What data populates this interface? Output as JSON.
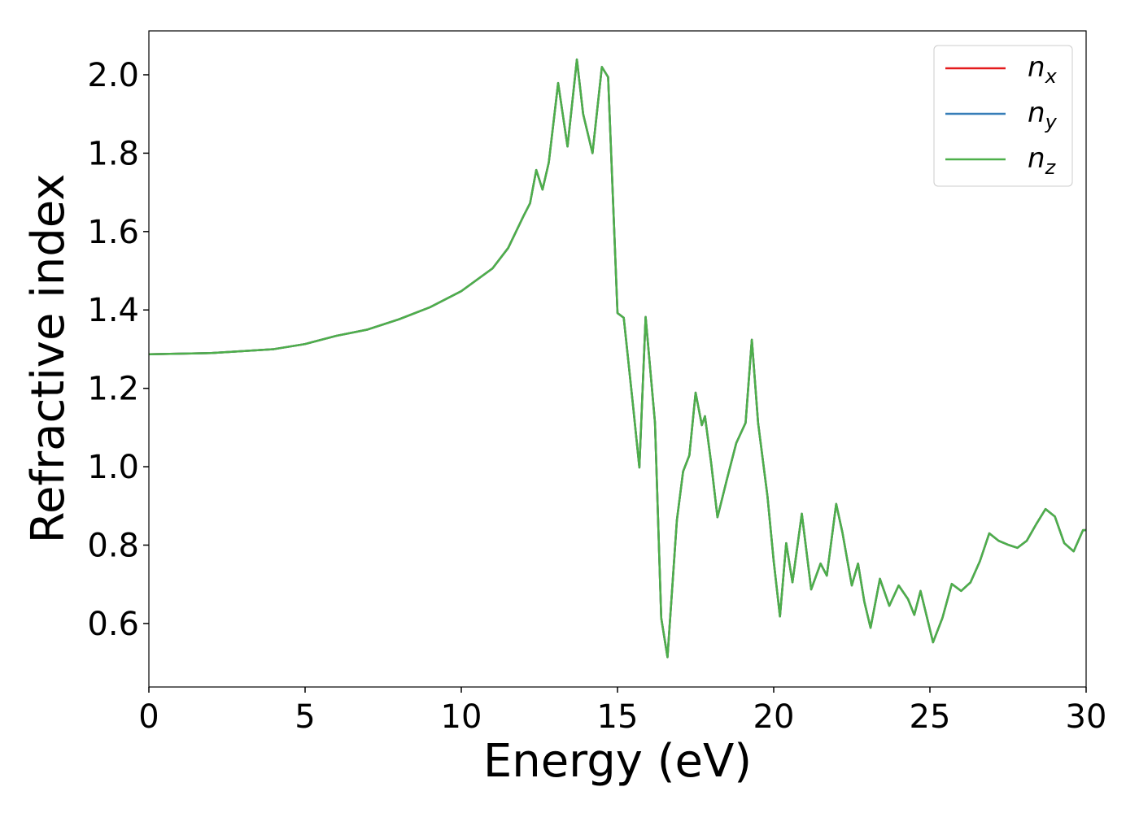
{
  "chart_data": {
    "type": "line",
    "xlabel": "Energy (eV)",
    "ylabel": "Refractive index",
    "x": [
      0,
      2,
      4,
      5,
      6,
      7,
      8,
      9,
      10,
      11,
      11.5,
      12,
      12.2,
      12.4,
      12.6,
      12.8,
      13.1,
      13.4,
      13.7,
      13.9,
      14.2,
      14.5,
      14.7,
      15.0,
      15.2,
      15.5,
      15.7,
      15.9,
      16.2,
      16.4,
      16.6,
      16.9,
      17.1,
      17.3,
      17.5,
      17.7,
      17.8,
      18.0,
      18.2,
      18.5,
      18.8,
      19.1,
      19.3,
      19.5,
      19.8,
      20.0,
      20.2,
      20.4,
      20.6,
      20.9,
      21.2,
      21.5,
      21.7,
      22.0,
      22.2,
      22.5,
      22.7,
      22.9,
      23.1,
      23.4,
      23.7,
      24.0,
      24.3,
      24.5,
      24.7,
      25.1,
      25.4,
      25.7,
      26.0,
      26.3,
      26.6,
      26.9,
      27.2,
      27.5,
      27.8,
      28.1,
      28.4,
      28.7,
      29.0,
      29.3,
      29.6,
      29.9,
      30
    ],
    "series": [
      {
        "name": "nx",
        "color": "#e41a1c",
        "values": [
          1.287,
          1.29,
          1.3,
          1.313,
          1.334,
          1.35,
          1.376,
          1.407,
          1.448,
          1.506,
          1.558,
          1.641,
          1.672,
          1.757,
          1.707,
          1.776,
          1.979,
          1.817,
          2.039,
          1.9,
          1.8,
          2.02,
          1.994,
          1.392,
          1.38,
          1.154,
          0.998,
          1.382,
          1.112,
          0.614,
          0.514,
          0.863,
          0.988,
          1.029,
          1.189,
          1.106,
          1.129,
          1.008,
          0.871,
          0.967,
          1.06,
          1.112,
          1.324,
          1.112,
          0.925,
          0.759,
          0.618,
          0.805,
          0.705,
          0.88,
          0.687,
          0.753,
          0.722,
          0.905,
          0.832,
          0.697,
          0.753,
          0.656,
          0.589,
          0.714,
          0.645,
          0.697,
          0.662,
          0.622,
          0.683,
          0.552,
          0.614,
          0.701,
          0.683,
          0.705,
          0.759,
          0.83,
          0.811,
          0.801,
          0.793,
          0.811,
          0.853,
          0.892,
          0.873,
          0.805,
          0.784,
          0.838,
          0.838
        ]
      },
      {
        "name": "ny",
        "color": "#377eb8",
        "values": [
          1.287,
          1.29,
          1.3,
          1.313,
          1.334,
          1.35,
          1.376,
          1.407,
          1.448,
          1.506,
          1.558,
          1.641,
          1.672,
          1.757,
          1.707,
          1.776,
          1.979,
          1.817,
          2.039,
          1.9,
          1.8,
          2.02,
          1.994,
          1.392,
          1.38,
          1.154,
          0.998,
          1.382,
          1.112,
          0.614,
          0.514,
          0.863,
          0.988,
          1.029,
          1.189,
          1.106,
          1.129,
          1.008,
          0.871,
          0.967,
          1.06,
          1.112,
          1.324,
          1.112,
          0.925,
          0.759,
          0.618,
          0.805,
          0.705,
          0.88,
          0.687,
          0.753,
          0.722,
          0.905,
          0.832,
          0.697,
          0.753,
          0.656,
          0.589,
          0.714,
          0.645,
          0.697,
          0.662,
          0.622,
          0.683,
          0.552,
          0.614,
          0.701,
          0.683,
          0.705,
          0.759,
          0.83,
          0.811,
          0.801,
          0.793,
          0.811,
          0.853,
          0.892,
          0.873,
          0.805,
          0.784,
          0.838,
          0.838
        ]
      },
      {
        "name": "nz",
        "color": "#4daf4a",
        "values": [
          1.287,
          1.29,
          1.3,
          1.313,
          1.334,
          1.35,
          1.376,
          1.407,
          1.448,
          1.506,
          1.558,
          1.641,
          1.672,
          1.757,
          1.707,
          1.776,
          1.979,
          1.817,
          2.039,
          1.9,
          1.8,
          2.02,
          1.994,
          1.392,
          1.38,
          1.154,
          0.998,
          1.382,
          1.112,
          0.614,
          0.514,
          0.863,
          0.988,
          1.029,
          1.189,
          1.106,
          1.129,
          1.008,
          0.871,
          0.967,
          1.06,
          1.112,
          1.324,
          1.112,
          0.925,
          0.759,
          0.618,
          0.805,
          0.705,
          0.88,
          0.687,
          0.753,
          0.722,
          0.905,
          0.832,
          0.697,
          0.753,
          0.656,
          0.589,
          0.714,
          0.645,
          0.697,
          0.662,
          0.622,
          0.683,
          0.552,
          0.614,
          0.701,
          0.683,
          0.705,
          0.759,
          0.83,
          0.811,
          0.801,
          0.793,
          0.811,
          0.853,
          0.892,
          0.873,
          0.805,
          0.784,
          0.838,
          0.838
        ]
      }
    ],
    "xlim": [
      0,
      30
    ],
    "xticks": [
      0,
      5,
      10,
      15,
      20,
      25,
      30
    ],
    "ylim": [
      0.438,
      2.112
    ],
    "yticks": [
      0.6,
      0.8,
      {
        "value": 1,
        "label": "1.0"
      },
      1.2,
      1.4,
      1.6,
      1.8,
      {
        "value": 2,
        "label": "2.0"
      }
    ],
    "grid": false,
    "legend": "upper right"
  }
}
